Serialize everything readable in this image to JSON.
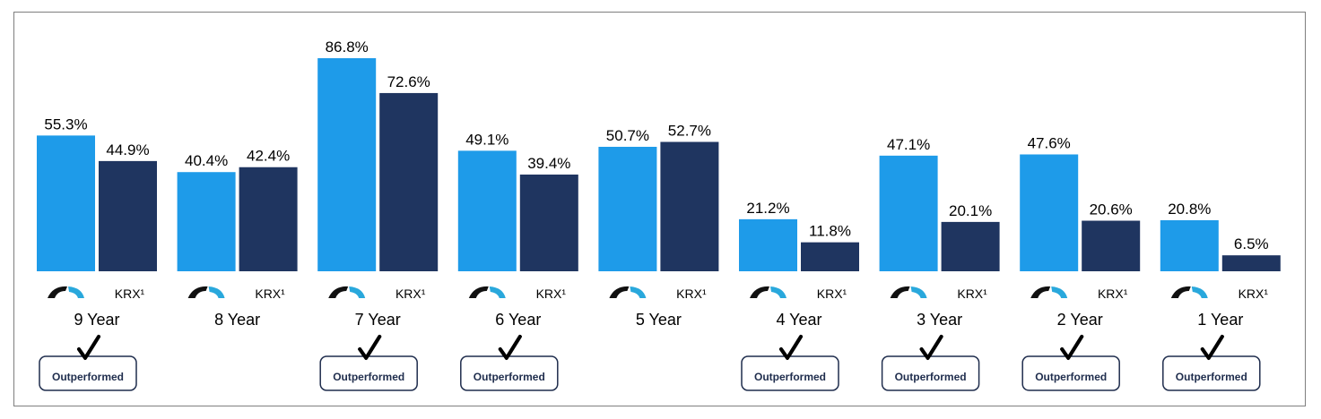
{
  "chart_data": {
    "type": "bar",
    "categories": [
      "9 Year",
      "8 Year",
      "7 Year",
      "6 Year",
      "5 Year",
      "4 Year",
      "3 Year",
      "2 Year",
      "1 Year"
    ],
    "series": [
      {
        "legend_icon": "fund-logo-icon",
        "values": [
          55.3,
          40.4,
          86.8,
          49.1,
          50.7,
          21.2,
          47.1,
          47.6,
          20.8
        ],
        "labels": [
          "55.3%",
          "40.4%",
          "86.8%",
          "49.1%",
          "50.7%",
          "21.2%",
          "47.1%",
          "47.6%",
          "20.8%"
        ]
      },
      {
        "name": "KRX¹",
        "values": [
          44.9,
          42.4,
          72.6,
          39.4,
          52.7,
          11.8,
          20.1,
          20.6,
          6.5
        ],
        "labels": [
          "44.9%",
          "42.4%",
          "72.6%",
          "39.4%",
          "52.7%",
          "11.8%",
          "20.1%",
          "20.6%",
          "6.5%"
        ]
      }
    ],
    "outperformed": [
      true,
      false,
      true,
      true,
      false,
      true,
      true,
      true,
      true
    ],
    "badge_label": "Outperformed",
    "ylim": [
      0,
      90
    ],
    "grid": false,
    "colors": {
      "fund": "#1e9be9",
      "krx": "#1f3560",
      "logo_dark": "#111111",
      "logo_light": "#29a8dc",
      "badge_border": "#1f2d4d"
    }
  }
}
